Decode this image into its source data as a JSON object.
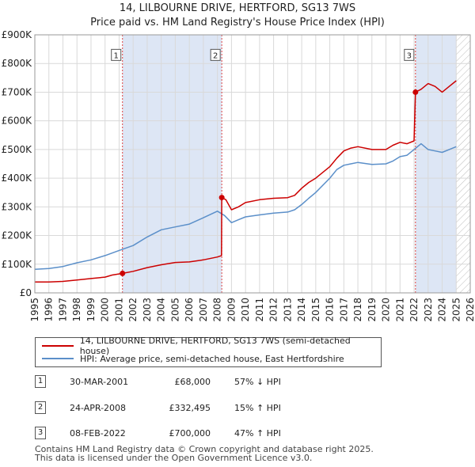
{
  "title_line1": "14, LILBOURNE DRIVE, HERTFORD, SG13 7WS",
  "title_line2": "Price paid vs. HM Land Registry's House Price Index (HPI)",
  "chart_data": {
    "type": "line",
    "xlim": [
      1995,
      2026
    ],
    "ylim": [
      0,
      900000
    ],
    "y_ticks": [
      0,
      100000,
      200000,
      300000,
      400000,
      500000,
      600000,
      700000,
      800000,
      900000
    ],
    "y_tick_labels": [
      "£0",
      "£100K",
      "£200K",
      "£300K",
      "£400K",
      "£500K",
      "£600K",
      "£700K",
      "£800K",
      "£900K"
    ],
    "x_ticks": [
      1995,
      1996,
      1997,
      1998,
      1999,
      2000,
      2001,
      2002,
      2003,
      2004,
      2005,
      2006,
      2007,
      2008,
      2009,
      2010,
      2011,
      2012,
      2013,
      2014,
      2015,
      2016,
      2017,
      2018,
      2019,
      2020,
      2021,
      2022,
      2023,
      2024,
      2025,
      2026
    ],
    "x_tick_labels": [
      "1995",
      "1996",
      "1997",
      "1998",
      "1999",
      "2000",
      "2001",
      "2002",
      "2003",
      "2004",
      "2005",
      "2006",
      "2007",
      "2008",
      "2009",
      "2010",
      "2011",
      "2012",
      "2013",
      "2014",
      "2015",
      "2016",
      "2017",
      "2018",
      "2019",
      "2020",
      "2021",
      "2022",
      "2023",
      "2024",
      "2025",
      "2026"
    ],
    "shaded_periods": [
      [
        2001.24,
        2008.31
      ],
      [
        2022.1,
        2025.0
      ]
    ],
    "hatched_from": 2025.0,
    "colors": {
      "property": "#cc0000",
      "hpi": "#5b8fc9",
      "shade": "#dde6f5",
      "marker": "#cc0000"
    },
    "series": [
      {
        "name": "14, LILBOURNE DRIVE, HERTFORD, SG13 7WS (semi-detached house)",
        "x": [
          1995,
          1996,
          1997,
          1998,
          1999,
          2000,
          2000.5,
          2001.24,
          2002,
          2003,
          2004,
          2005,
          2006,
          2007,
          2008,
          2008.29,
          2008.31,
          2008.6,
          2009,
          2009.5,
          2010,
          2011,
          2012,
          2013,
          2013.5,
          2014,
          2014.5,
          2015,
          2016,
          2016.5,
          2017,
          2017.5,
          2018,
          2019,
          2020,
          2020.5,
          2021,
          2021.5,
          2022,
          2022.1,
          2022.5,
          2023,
          2023.5,
          2024,
          2024.5,
          2025
        ],
        "values": [
          38000,
          38000,
          40000,
          45000,
          50000,
          55000,
          62000,
          68000,
          75000,
          88000,
          98000,
          106000,
          108000,
          115000,
          125000,
          130000,
          332495,
          325000,
          290000,
          300000,
          315000,
          325000,
          330000,
          332000,
          340000,
          365000,
          385000,
          400000,
          440000,
          470000,
          495000,
          505000,
          510000,
          500000,
          500000,
          515000,
          525000,
          520000,
          530000,
          700000,
          710000,
          730000,
          720000,
          700000,
          720000,
          740000
        ]
      },
      {
        "name": "HPI: Average price, semi-detached house, East Hertfordshire",
        "x": [
          1995,
          1996,
          1997,
          1998,
          1999,
          2000,
          2001,
          2002,
          2003,
          2004,
          2005,
          2006,
          2007,
          2008,
          2008.5,
          2009,
          2009.5,
          2010,
          2011,
          2012,
          2013,
          2013.5,
          2014,
          2014.5,
          2015,
          2016,
          2016.5,
          2017,
          2017.5,
          2018,
          2019,
          2020,
          2020.5,
          2021,
          2021.5,
          2022,
          2022.5,
          2023,
          2023.5,
          2024,
          2024.5,
          2025
        ],
        "values": [
          82000,
          85000,
          92000,
          105000,
          115000,
          130000,
          148000,
          165000,
          195000,
          220000,
          230000,
          240000,
          262000,
          285000,
          270000,
          245000,
          255000,
          265000,
          272000,
          278000,
          282000,
          290000,
          308000,
          330000,
          350000,
          400000,
          430000,
          445000,
          450000,
          455000,
          448000,
          450000,
          460000,
          475000,
          480000,
          500000,
          520000,
          500000,
          495000,
          490000,
          500000,
          510000
        ]
      }
    ],
    "sales": [
      {
        "num": "1",
        "x": 2001.24,
        "value": 68000
      },
      {
        "num": "2",
        "x": 2008.31,
        "value": 332495
      },
      {
        "num": "3",
        "x": 2022.1,
        "value": 700000
      }
    ],
    "sale_box_value": 830000
  },
  "legend": {
    "property": "14, LILBOURNE DRIVE, HERTFORD, SG13 7WS (semi-detached house)",
    "hpi": "HPI: Average price, semi-detached house, East Hertfordshire"
  },
  "transactions": [
    {
      "num": "1",
      "date": "30-MAR-2001",
      "price": "£68,000",
      "hpi": "57% ↓ HPI"
    },
    {
      "num": "2",
      "date": "24-APR-2008",
      "price": "£332,495",
      "hpi": "15% ↑ HPI"
    },
    {
      "num": "3",
      "date": "08-FEB-2022",
      "price": "£700,000",
      "hpi": "47% ↑ HPI"
    }
  ],
  "footer_line1": "Contains HM Land Registry data © Crown copyright and database right 2025.",
  "footer_line2": "This data is licensed under the Open Government Licence v3.0."
}
